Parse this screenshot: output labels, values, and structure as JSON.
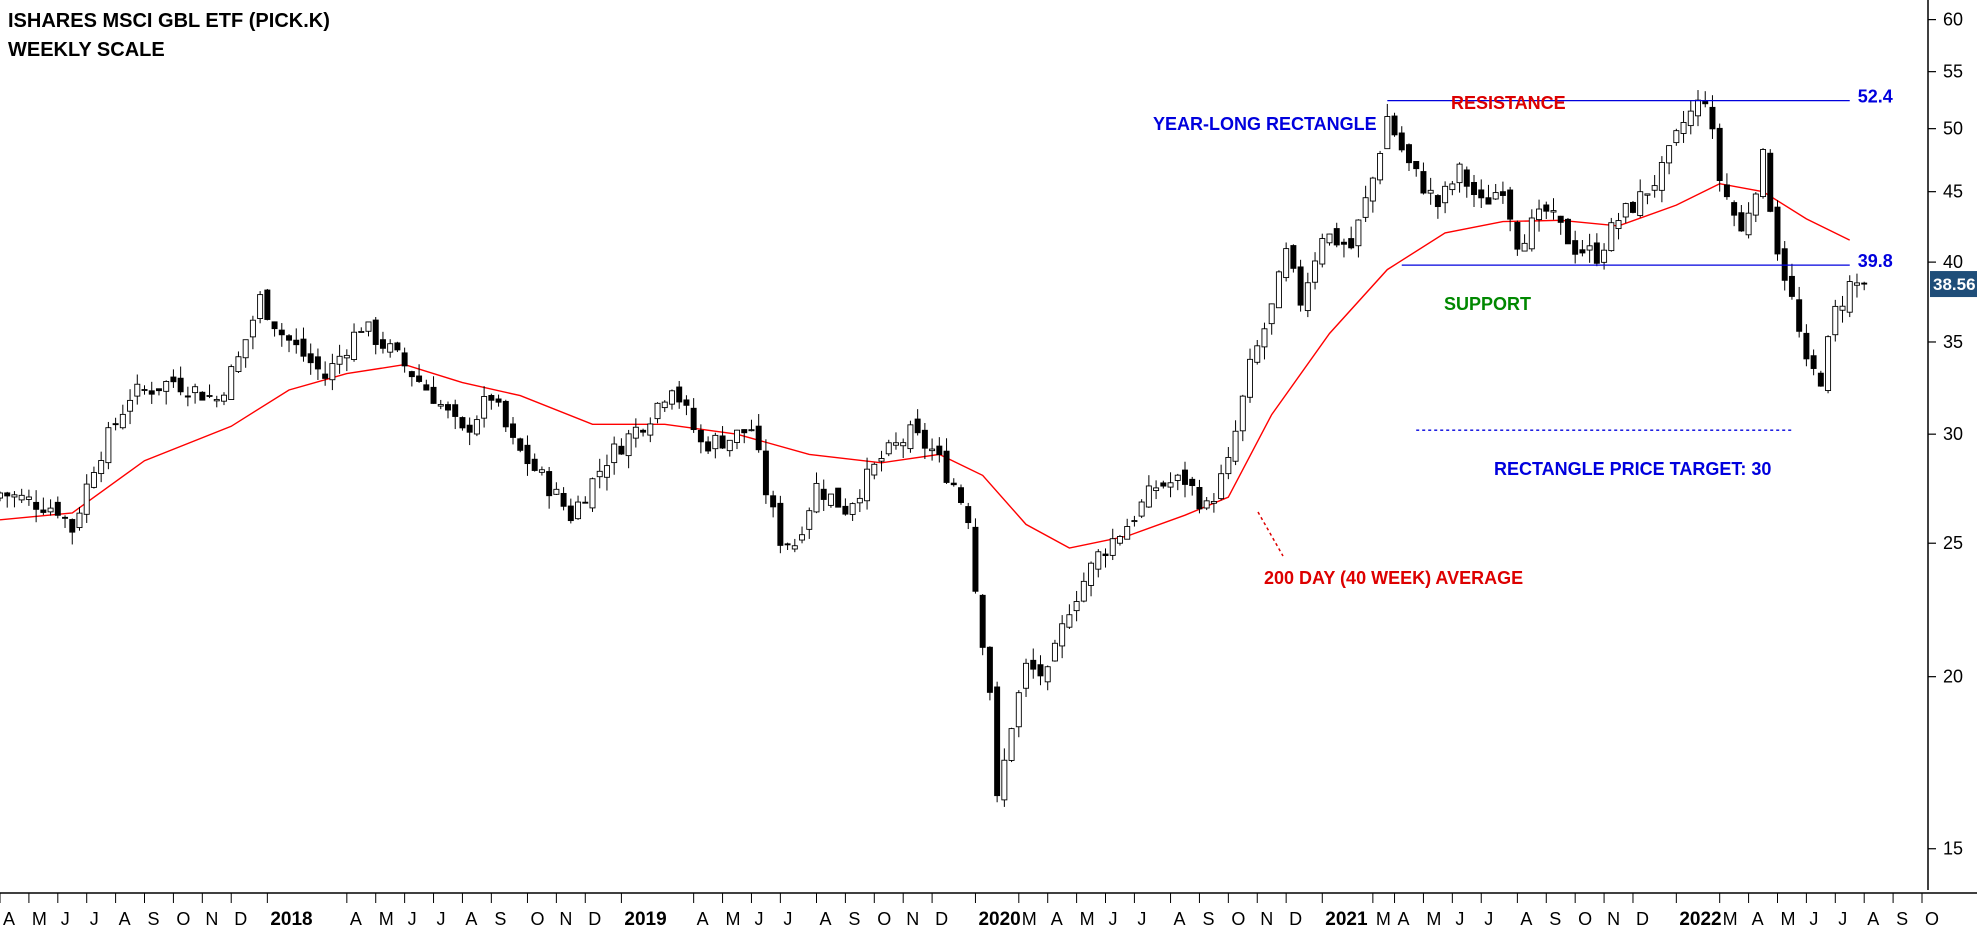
{
  "colors": {
    "up_candle_fill": "#ffffff",
    "down_candle_fill": "#000000",
    "candle_outline": "#000000",
    "moving_average": "#ff0000",
    "annotation_blue": "#0000dd",
    "annotation_red": "#dd0000",
    "annotation_green": "#008800",
    "last_price_badge": "#1f4e79"
  },
  "chart_data": {
    "type": "candlestick",
    "title": "ISHARES MSCI GBL ETF (PICK.K)",
    "subtitle": "WEEKLY SCALE",
    "y_scale": "log",
    "ylim": [
      14,
      62
    ],
    "y_ticks": [
      15,
      20,
      25,
      30,
      35,
      40,
      45,
      50,
      55,
      60
    ],
    "last_price_label": "38.56",
    "x_range_weeks": [
      0,
      266
    ],
    "x_axis_labels": [
      {
        "label": "A",
        "week": 0
      },
      {
        "label": "M",
        "week": 4
      },
      {
        "label": "J",
        "week": 8
      },
      {
        "label": "J",
        "week": 12
      },
      {
        "label": "A",
        "week": 16
      },
      {
        "label": "S",
        "week": 20
      },
      {
        "label": "O",
        "week": 24
      },
      {
        "label": "N",
        "week": 28
      },
      {
        "label": "D",
        "week": 32
      },
      {
        "label": "2018",
        "week": 37,
        "year": true
      },
      {
        "label": "A",
        "week": 48
      },
      {
        "label": "M",
        "week": 52
      },
      {
        "label": "J",
        "week": 56
      },
      {
        "label": "J",
        "week": 60
      },
      {
        "label": "A",
        "week": 64
      },
      {
        "label": "S",
        "week": 68
      },
      {
        "label": "O",
        "week": 73
      },
      {
        "label": "N",
        "week": 77
      },
      {
        "label": "D",
        "week": 81
      },
      {
        "label": "2019",
        "week": 86,
        "year": true
      },
      {
        "label": "A",
        "week": 96
      },
      {
        "label": "M",
        "week": 100
      },
      {
        "label": "J",
        "week": 104
      },
      {
        "label": "J",
        "week": 108
      },
      {
        "label": "A",
        "week": 113
      },
      {
        "label": "S",
        "week": 117
      },
      {
        "label": "O",
        "week": 121
      },
      {
        "label": "N",
        "week": 125
      },
      {
        "label": "D",
        "week": 129
      },
      {
        "label": "2020",
        "week": 135,
        "year": true
      },
      {
        "label": "M",
        "week": 141
      },
      {
        "label": "A",
        "week": 145
      },
      {
        "label": "M",
        "week": 149
      },
      {
        "label": "J",
        "week": 153
      },
      {
        "label": "J",
        "week": 157
      },
      {
        "label": "A",
        "week": 162
      },
      {
        "label": "S",
        "week": 166
      },
      {
        "label": "O",
        "week": 170
      },
      {
        "label": "N",
        "week": 174
      },
      {
        "label": "D",
        "week": 178
      },
      {
        "label": "2021",
        "week": 183,
        "year": true
      },
      {
        "label": "M",
        "week": 190
      },
      {
        "label": "A",
        "week": 193
      },
      {
        "label": "M",
        "week": 197
      },
      {
        "label": "J",
        "week": 201
      },
      {
        "label": "J",
        "week": 205
      },
      {
        "label": "A",
        "week": 210
      },
      {
        "label": "S",
        "week": 214
      },
      {
        "label": "O",
        "week": 218
      },
      {
        "label": "N",
        "week": 222
      },
      {
        "label": "D",
        "week": 226
      },
      {
        "label": "2022",
        "week": 232,
        "year": true
      },
      {
        "label": "M",
        "week": 238
      },
      {
        "label": "A",
        "week": 242
      },
      {
        "label": "M",
        "week": 246
      },
      {
        "label": "J",
        "week": 250
      },
      {
        "label": "J",
        "week": 254
      },
      {
        "label": "A",
        "week": 258
      },
      {
        "label": "S",
        "week": 262
      },
      {
        "label": "O",
        "week": 266
      }
    ],
    "price_path": [
      {
        "week": 0,
        "close": 27.2
      },
      {
        "week": 8,
        "close": 26.5
      },
      {
        "week": 10,
        "close": 25.6
      },
      {
        "week": 13,
        "close": 28.5
      },
      {
        "week": 18,
        "close": 32.0
      },
      {
        "week": 24,
        "close": 32.8
      },
      {
        "week": 30,
        "close": 31.8
      },
      {
        "week": 33,
        "close": 34.0
      },
      {
        "week": 36,
        "close": 37.6
      },
      {
        "week": 39,
        "close": 35.5
      },
      {
        "week": 45,
        "close": 33.0
      },
      {
        "week": 50,
        "close": 36.0
      },
      {
        "week": 54,
        "close": 34.5
      },
      {
        "week": 60,
        "close": 32.0
      },
      {
        "week": 64,
        "close": 30.0
      },
      {
        "week": 68,
        "close": 32.0
      },
      {
        "week": 71,
        "close": 29.5
      },
      {
        "week": 76,
        "close": 27.5
      },
      {
        "week": 79,
        "close": 26.2
      },
      {
        "week": 84,
        "close": 28.8
      },
      {
        "week": 90,
        "close": 31.0
      },
      {
        "week": 93,
        "close": 32.7
      },
      {
        "week": 97,
        "close": 29.5
      },
      {
        "week": 101,
        "close": 29.8
      },
      {
        "week": 104,
        "close": 30.3
      },
      {
        "week": 106,
        "close": 27.3
      },
      {
        "week": 108,
        "close": 25.2
      },
      {
        "week": 110,
        "close": 25.0
      },
      {
        "week": 113,
        "close": 27.5
      },
      {
        "week": 117,
        "close": 26.5
      },
      {
        "week": 122,
        "close": 28.8
      },
      {
        "week": 126,
        "close": 30.0
      },
      {
        "week": 129,
        "close": 29.2
      },
      {
        "week": 132,
        "close": 27.6
      },
      {
        "week": 134,
        "close": 26.2
      },
      {
        "week": 135,
        "close": 23.2
      },
      {
        "week": 137,
        "close": 19.6
      },
      {
        "week": 138,
        "close": 16.2
      },
      {
        "week": 140,
        "close": 18.5
      },
      {
        "week": 142,
        "close": 20.3
      },
      {
        "week": 145,
        "close": 20.0
      },
      {
        "week": 148,
        "close": 22.5
      },
      {
        "week": 152,
        "close": 24.5
      },
      {
        "week": 156,
        "close": 25.8
      },
      {
        "week": 160,
        "close": 27.5
      },
      {
        "week": 164,
        "close": 27.8
      },
      {
        "week": 167,
        "close": 26.5
      },
      {
        "week": 170,
        "close": 28.5
      },
      {
        "week": 173,
        "close": 33.5
      },
      {
        "week": 176,
        "close": 37.0
      },
      {
        "week": 178,
        "close": 40.5
      },
      {
        "week": 180,
        "close": 37.5
      },
      {
        "week": 183,
        "close": 42.0
      },
      {
        "week": 187,
        "close": 41.0
      },
      {
        "week": 190,
        "close": 46.0
      },
      {
        "week": 192,
        "close": 51.0
      },
      {
        "week": 195,
        "close": 47.0
      },
      {
        "week": 199,
        "close": 44.0
      },
      {
        "week": 202,
        "close": 46.5
      },
      {
        "week": 205,
        "close": 44.0
      },
      {
        "week": 208,
        "close": 45.5
      },
      {
        "week": 210,
        "close": 41.5
      },
      {
        "week": 214,
        "close": 43.5
      },
      {
        "week": 218,
        "close": 41.0
      },
      {
        "week": 221,
        "close": 40.5
      },
      {
        "week": 224,
        "close": 43.0
      },
      {
        "week": 227,
        "close": 44.5
      },
      {
        "week": 230,
        "close": 46.5
      },
      {
        "week": 233,
        "close": 50.5
      },
      {
        "week": 236,
        "close": 52.8
      },
      {
        "week": 238,
        "close": 46.0
      },
      {
        "week": 241,
        "close": 42.0
      },
      {
        "week": 244,
        "close": 47.5
      },
      {
        "week": 246,
        "close": 41.0
      },
      {
        "week": 248,
        "close": 37.5
      },
      {
        "week": 250,
        "close": 33.5
      },
      {
        "week": 252,
        "close": 33.0
      },
      {
        "week": 254,
        "close": 36.8
      },
      {
        "week": 256,
        "close": 38.5
      },
      {
        "week": 258,
        "close": 38.56
      }
    ],
    "moving_average": [
      {
        "week": 0,
        "value": 26.0
      },
      {
        "week": 10,
        "value": 26.3
      },
      {
        "week": 20,
        "value": 28.7
      },
      {
        "week": 32,
        "value": 30.4
      },
      {
        "week": 40,
        "value": 32.3
      },
      {
        "week": 48,
        "value": 33.2
      },
      {
        "week": 56,
        "value": 33.7
      },
      {
        "week": 64,
        "value": 32.7
      },
      {
        "week": 72,
        "value": 32.0
      },
      {
        "week": 82,
        "value": 30.5
      },
      {
        "week": 92,
        "value": 30.5
      },
      {
        "week": 102,
        "value": 30.0
      },
      {
        "week": 112,
        "value": 29.0
      },
      {
        "week": 122,
        "value": 28.6
      },
      {
        "week": 130,
        "value": 29.0
      },
      {
        "week": 136,
        "value": 28.0
      },
      {
        "week": 142,
        "value": 25.8
      },
      {
        "week": 148,
        "value": 24.8
      },
      {
        "week": 156,
        "value": 25.3
      },
      {
        "week": 164,
        "value": 26.2
      },
      {
        "week": 170,
        "value": 27.0
      },
      {
        "week": 176,
        "value": 31.0
      },
      {
        "week": 184,
        "value": 35.5
      },
      {
        "week": 192,
        "value": 39.5
      },
      {
        "week": 200,
        "value": 42.0
      },
      {
        "week": 208,
        "value": 42.8
      },
      {
        "week": 216,
        "value": 42.9
      },
      {
        "week": 224,
        "value": 42.5
      },
      {
        "week": 232,
        "value": 44.0
      },
      {
        "week": 238,
        "value": 45.6
      },
      {
        "week": 244,
        "value": 45.0
      },
      {
        "week": 250,
        "value": 43.0
      },
      {
        "week": 256,
        "value": 41.5
      }
    ],
    "levels": [
      {
        "name": "resistance",
        "value": 52.4,
        "label": "52.4",
        "from_week": 192,
        "to_week": 256
      },
      {
        "name": "support",
        "value": 39.8,
        "label": "39.8",
        "from_week": 194,
        "to_week": 256
      },
      {
        "name": "target",
        "value": 30.2,
        "from_week": 196,
        "to_week": 248,
        "dashed": true
      }
    ],
    "annotations": {
      "year_long_rectangle": "YEAR-LONG RECTANGLE",
      "resistance": "RESISTANCE",
      "support": "SUPPORT",
      "price_target": "RECTANGLE PRICE TARGET: 30",
      "moving_average_label": "200 DAY (40 WEEK) AVERAGE"
    }
  }
}
